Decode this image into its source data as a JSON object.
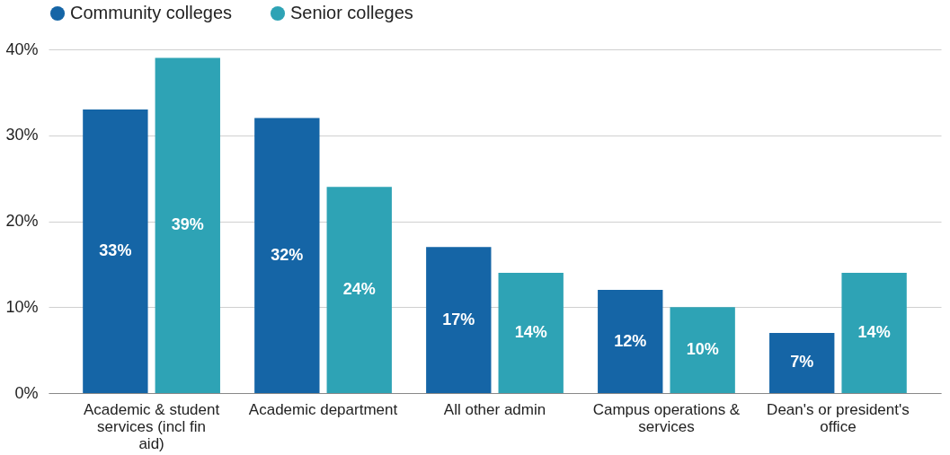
{
  "chart_data": {
    "type": "bar",
    "categories": [
      "Academic & student services (incl fin aid)",
      "Academic department",
      "All other admin",
      "Campus operations & services",
      "Dean's or president's office"
    ],
    "series": [
      {
        "name": "Community colleges",
        "color": "#1565a6",
        "values": [
          33,
          32,
          17,
          12,
          7
        ],
        "value_labels": [
          "33%",
          "32%",
          "17%",
          "12%",
          "7%"
        ]
      },
      {
        "name": "Senior colleges",
        "color": "#2ea3b5",
        "values": [
          39,
          24,
          14,
          10,
          14
        ],
        "value_labels": [
          "39%",
          "24%",
          "14%",
          "10%",
          "14%"
        ]
      }
    ],
    "ylim": [
      0,
      40
    ],
    "yticks": [
      {
        "value": 0,
        "label": "0%"
      },
      {
        "value": 10,
        "label": "10%"
      },
      {
        "value": 20,
        "label": "20%"
      },
      {
        "value": 30,
        "label": "30%"
      },
      {
        "value": 40,
        "label": "40%"
      }
    ],
    "grid": "y",
    "legend": "top left"
  }
}
